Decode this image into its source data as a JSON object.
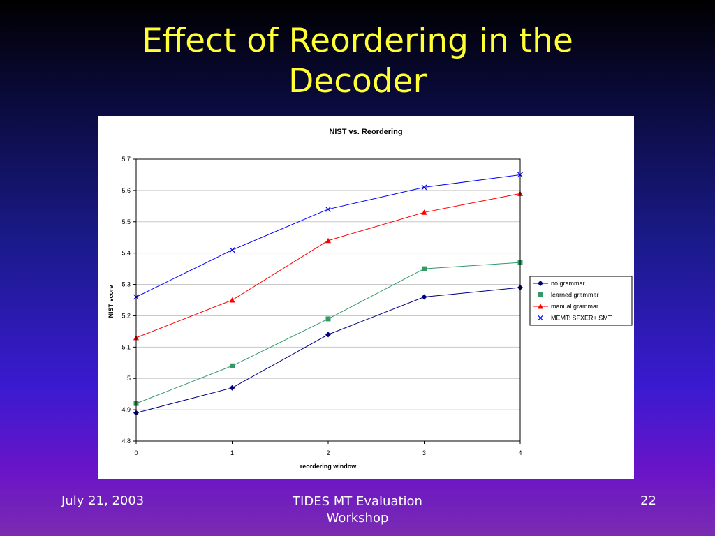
{
  "slide": {
    "title_line1": "Effect of Reordering in the",
    "title_line2": "Decoder",
    "footer": {
      "date": "July 21, 2003",
      "event_line1": "TIDES MT Evaluation",
      "event_line2": "Workshop",
      "page": "22"
    }
  },
  "chart_data": {
    "type": "line",
    "title": "NIST vs. Reordering",
    "xlabel": "reordering window",
    "ylabel": "NIST score",
    "x": [
      0,
      1,
      2,
      3,
      4
    ],
    "x_tick_labels": [
      "0",
      "1",
      "2",
      "3",
      "4"
    ],
    "ylim": [
      4.8,
      5.7
    ],
    "y_tick_labels": [
      "4.8",
      "4.9",
      "5",
      "5.1",
      "5.2",
      "5.3",
      "5.4",
      "5.5",
      "5.6",
      "5.7"
    ],
    "grid": true,
    "legend_position": "right",
    "series": [
      {
        "name": "no grammar",
        "values": [
          4.89,
          4.97,
          5.14,
          5.26,
          5.29
        ],
        "color": "#000080",
        "marker": "diamond"
      },
      {
        "name": "learned grammar",
        "values": [
          4.92,
          5.04,
          5.19,
          5.35,
          5.37
        ],
        "color": "#339966",
        "marker": "square"
      },
      {
        "name": "manual grammar",
        "values": [
          5.13,
          5.25,
          5.44,
          5.53,
          5.59
        ],
        "color": "#ff0000",
        "marker": "triangle"
      },
      {
        "name": "MEMT: SFXER+ SMT",
        "values": [
          5.26,
          5.41,
          5.54,
          5.61,
          5.65
        ],
        "color": "#0000ff",
        "marker": "x"
      }
    ]
  }
}
